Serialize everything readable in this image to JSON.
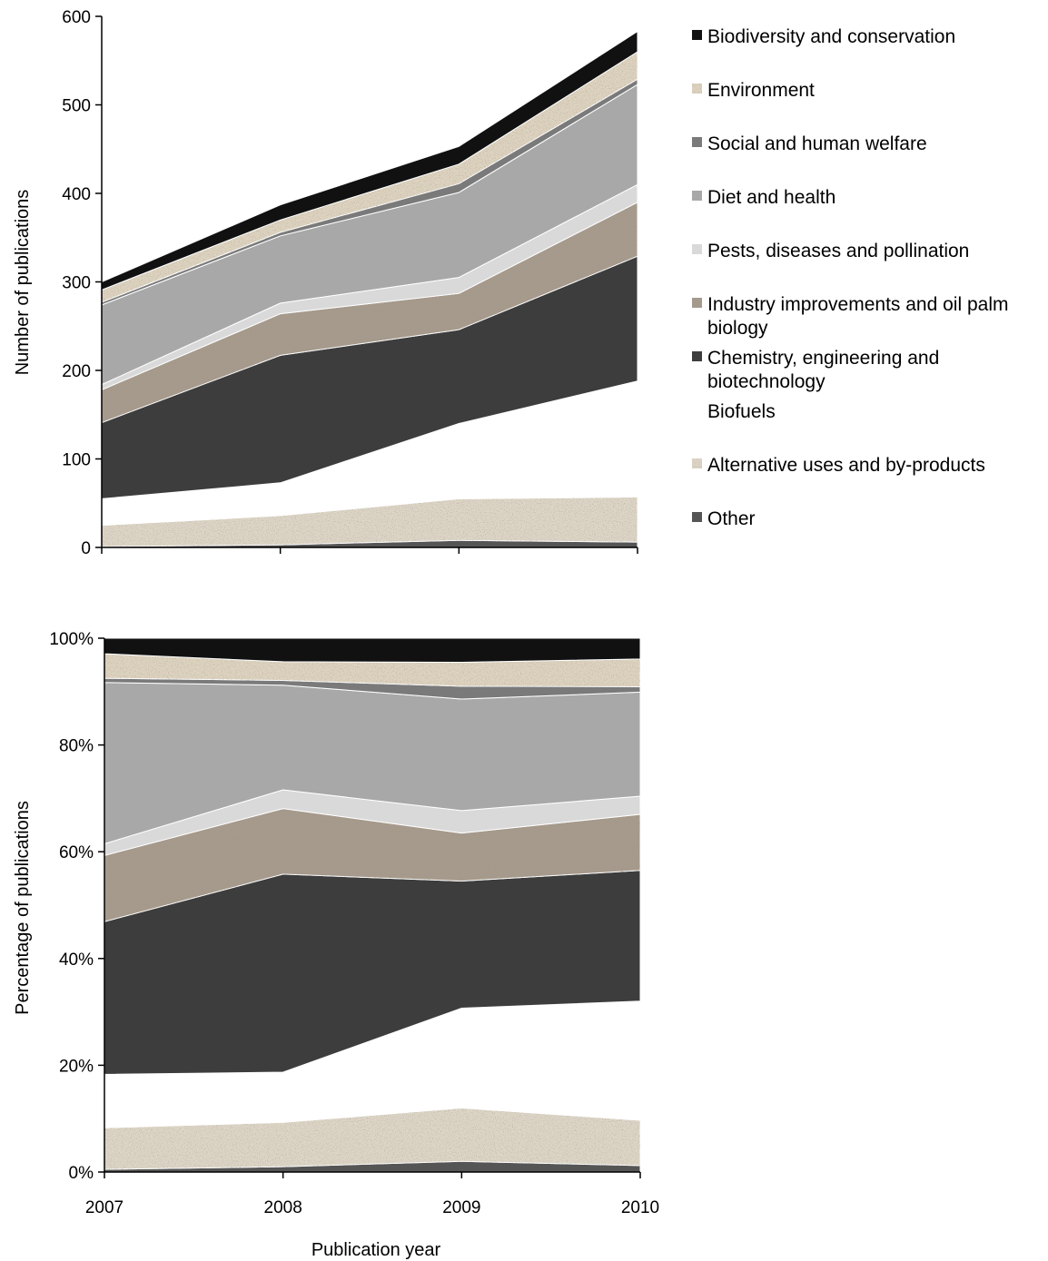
{
  "colors": {
    "biodiversity": "#111111",
    "environment": "#ddd3bf",
    "social": "#7a7a7a",
    "diet": "#a8a8a8",
    "pests": "#d9d9d9",
    "industry": "#a69a8c",
    "chemistry": "#3d3d3d",
    "biofuels": "#ffffff",
    "alternative": "#ddd5c6",
    "other": "#555555"
  },
  "legend": [
    {
      "key": "biodiversity",
      "lines": [
        "Biodiversity and conservation"
      ]
    },
    {
      "key": "environment",
      "lines": [
        "Environment"
      ]
    },
    {
      "key": "social",
      "lines": [
        "Social and human welfare"
      ]
    },
    {
      "key": "diet",
      "lines": [
        "Diet and health"
      ]
    },
    {
      "key": "pests",
      "lines": [
        "Pests, diseases and pollination"
      ]
    },
    {
      "key": "industry",
      "lines": [
        "Industry improvements and oil palm",
        "biology"
      ]
    },
    {
      "key": "chemistry",
      "lines": [
        "Chemistry, engineering  and",
        "biotechnology"
      ]
    },
    {
      "key": "biofuels",
      "lines": [
        "Biofuels"
      ]
    },
    {
      "key": "alternative",
      "lines": [
        "Alternative uses and by-products"
      ]
    },
    {
      "key": "other",
      "lines": [
        "Other"
      ]
    }
  ],
  "chart_data": [
    {
      "type": "area",
      "stacked": true,
      "x": [
        2007,
        2008,
        2009,
        2010
      ],
      "ylabel": "Number of publications",
      "ylim": [
        0,
        600
      ],
      "yticks": [
        "0",
        "100",
        "200",
        "300",
        "400",
        "500",
        "600"
      ],
      "series": [
        {
          "key": "other",
          "name": "Other",
          "values": [
            1,
            3,
            8,
            6
          ]
        },
        {
          "key": "alternative",
          "name": "Alternative uses and by-products",
          "values": [
            24,
            33,
            47,
            51
          ]
        },
        {
          "key": "biofuels",
          "name": "Biofuels",
          "values": [
            30,
            37,
            85,
            131
          ]
        },
        {
          "key": "chemistry",
          "name": "Chemistry, engineering  and biotechnology",
          "values": [
            86,
            144,
            106,
            141
          ]
        },
        {
          "key": "industry",
          "name": "Industry improvements and oil palm biology",
          "values": [
            37,
            47,
            41,
            61
          ]
        },
        {
          "key": "pests",
          "name": "Pests, diseases and pollination",
          "values": [
            6,
            12,
            18,
            20
          ]
        },
        {
          "key": "diet",
          "name": "Diet and health",
          "values": [
            90,
            76,
            96,
            113
          ]
        },
        {
          "key": "social",
          "name": "Social and human welfare",
          "values": [
            3,
            4,
            10,
            6
          ]
        },
        {
          "key": "environment",
          "name": "Environment",
          "values": [
            14,
            14,
            22,
            31
          ]
        },
        {
          "key": "biodiversity",
          "name": "Biodiversity and conservation",
          "values": [
            9,
            17,
            20,
            23
          ]
        }
      ]
    },
    {
      "type": "area",
      "stacked": true,
      "percent": true,
      "x": [
        2007,
        2008,
        2009,
        2010
      ],
      "xticks": [
        "2007",
        "2008",
        "2009",
        "2010"
      ],
      "xlabel": "Publication year",
      "ylabel": "Percentage of publications",
      "ylim": [
        0,
        100
      ],
      "yticks": [
        "0%",
        "20%",
        "40%",
        "60%",
        "80%",
        "100%"
      ],
      "series": [
        {
          "key": "other",
          "name": "Other",
          "values": [
            0.5,
            1.0,
            2.0,
            1.2
          ]
        },
        {
          "key": "alternative",
          "name": "Alternative uses and by-products",
          "values": [
            7.8,
            8.3,
            10.0,
            8.5
          ]
        },
        {
          "key": "biofuels",
          "name": "Biofuels",
          "values": [
            10.0,
            9.4,
            18.7,
            22.3
          ]
        },
        {
          "key": "chemistry",
          "name": "Chemistry, engineering  and biotechnology",
          "values": [
            28.6,
            37.1,
            23.8,
            24.5
          ]
        },
        {
          "key": "industry",
          "name": "Industry improvements and oil palm biology",
          "values": [
            12.4,
            12.3,
            9.0,
            10.5
          ]
        },
        {
          "key": "pests",
          "name": "Pests, diseases and pollination",
          "values": [
            2.2,
            3.5,
            4.2,
            3.4
          ]
        },
        {
          "key": "diet",
          "name": "Diet and health",
          "values": [
            30.2,
            19.6,
            20.9,
            19.5
          ]
        },
        {
          "key": "social",
          "name": "Social and human welfare",
          "values": [
            0.8,
            0.9,
            2.4,
            1.0
          ]
        },
        {
          "key": "environment",
          "name": "Environment",
          "values": [
            4.6,
            3.5,
            4.5,
            5.2
          ]
        },
        {
          "key": "biodiversity",
          "name": "Biodiversity and conservation",
          "values": [
            2.9,
            4.4,
            4.5,
            3.9
          ]
        }
      ]
    }
  ]
}
